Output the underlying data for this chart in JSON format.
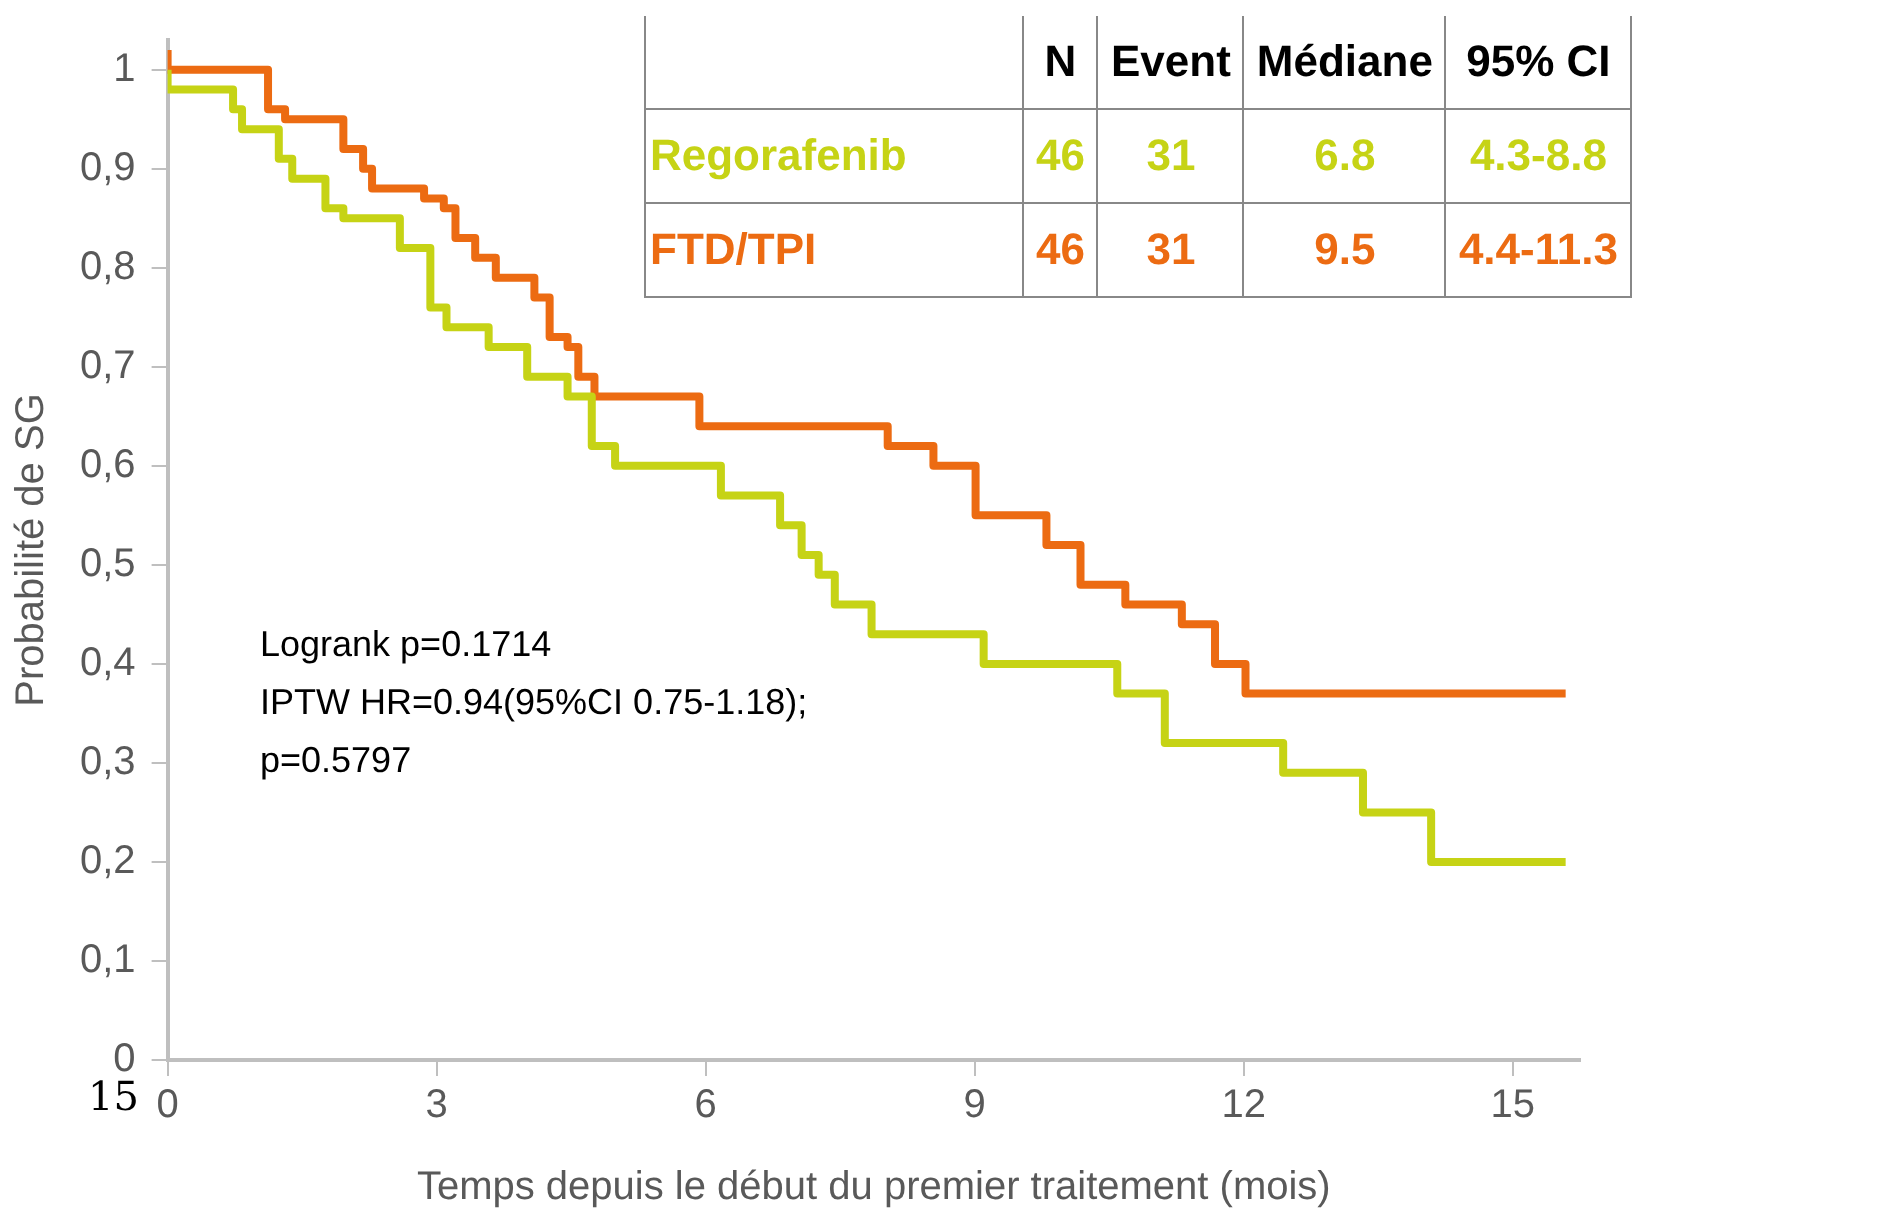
{
  "chart_data": {
    "type": "step",
    "xlabel": "Temps depuis le début du premier traitement (mois)",
    "ylabel": "Probabilité de SG",
    "xlim": [
      0,
      15.75
    ],
    "xticks": [
      0,
      3,
      6,
      9,
      12,
      15
    ],
    "ylim": [
      0,
      1.03
    ],
    "yticks": [
      {
        "value": 0,
        "label": "0"
      },
      {
        "value": 0.1,
        "label": "0,1"
      },
      {
        "value": 0.2,
        "label": "0,2"
      },
      {
        "value": 0.3,
        "label": "0,3"
      },
      {
        "value": 0.4,
        "label": "0,4"
      },
      {
        "value": 0.5,
        "label": "0,5"
      },
      {
        "value": 0.6,
        "label": "0,6"
      },
      {
        "value": 0.7,
        "label": "0,7"
      },
      {
        "value": 0.8,
        "label": "0,8"
      },
      {
        "value": 0.9,
        "label": "0,9"
      },
      {
        "value": 1,
        "label": "1"
      }
    ],
    "grid": false,
    "legend": false,
    "series": [
      {
        "name": "Regorafenib",
        "color": "#c6d315",
        "x": [
          0,
          0.73,
          0.83,
          1.24,
          1.39,
          1.76,
          1.96,
          2.59,
          2.93,
          3.11,
          3.58,
          4.01,
          4.46,
          4.73,
          4.99,
          6.17,
          6.83,
          7.07,
          7.26,
          7.44,
          7.85,
          9.1,
          10.59,
          11.12,
          12.44,
          13.33,
          14.09,
          15.16,
          15.59
        ],
        "values": [
          1.0,
          0.98,
          0.96,
          0.94,
          0.91,
          0.89,
          0.86,
          0.85,
          0.82,
          0.76,
          0.74,
          0.72,
          0.69,
          0.67,
          0.62,
          0.6,
          0.57,
          0.54,
          0.51,
          0.49,
          0.46,
          0.43,
          0.4,
          0.37,
          0.32,
          0.29,
          0.25,
          0.2,
          0.2
        ]
      },
      {
        "name": "FTD/TPI",
        "color": "#ec6b12",
        "x": [
          0,
          1.12,
          1.31,
          1.96,
          2.18,
          2.28,
          2.86,
          3.08,
          3.21,
          3.43,
          3.66,
          4.09,
          4.26,
          4.46,
          4.58,
          4.76,
          5.93,
          8.03,
          8.54,
          9.01,
          9.8,
          10.18,
          10.68,
          11.31,
          11.68,
          12.02,
          13.77,
          15.59
        ],
        "values": [
          1.02,
          1.0,
          0.96,
          0.95,
          0.92,
          0.9,
          0.88,
          0.87,
          0.86,
          0.83,
          0.81,
          0.79,
          0.77,
          0.73,
          0.72,
          0.69,
          0.67,
          0.64,
          0.62,
          0.6,
          0.55,
          0.52,
          0.48,
          0.46,
          0.44,
          0.4,
          0.37,
          0.37
        ]
      }
    ],
    "annotations": [
      "N",
      "Event",
      "Médiane",
      "95% CI",
      "46",
      "31",
      "6.8",
      "4.3-8.8",
      "46",
      "31",
      "9.5",
      "4.4-11.3",
      "Logrank p=0.1714\nIPTW HR=0.94(95%CI 0.75-1.18);\np=0.5797",
      "15"
    ]
  }
}
